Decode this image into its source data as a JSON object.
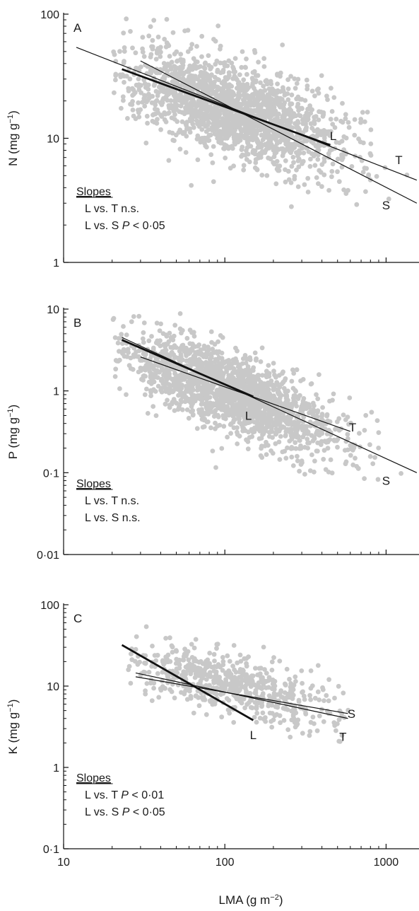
{
  "x_axis": {
    "label_main": "LMA (g m",
    "label_sup": "−2",
    "label_close": ")",
    "ticks": [
      {
        "value": 10,
        "label": "10"
      },
      {
        "value": 100,
        "label": "100"
      },
      {
        "value": 1000,
        "label": "1000"
      }
    ]
  },
  "chart_data": [
    {
      "type": "scatter",
      "panel": "A",
      "y_scale": "log",
      "x_scale": "log",
      "xlim": [
        10,
        1600
      ],
      "ylim": [
        1,
        100
      ],
      "ylabel_main": "N (mg g",
      "ylabel_sup": "−1",
      "ylabel_close": ")",
      "y_ticks": [
        {
          "value": 1,
          "label": "1"
        },
        {
          "value": 10,
          "label": "10"
        },
        {
          "value": 100,
          "label": "100"
        }
      ],
      "cloud": {
        "x_range": [
          20,
          1500
        ],
        "center": [
          110,
          17
        ],
        "slope": -0.42
      },
      "lines": [
        {
          "name": "L",
          "x": [
            23,
            450
          ],
          "y": [
            36,
            8.8
          ],
          "weight": "bold"
        },
        {
          "name": "T",
          "x": [
            12,
            1550
          ],
          "y": [
            54,
            4.6
          ],
          "weight": "thin"
        },
        {
          "name": "S",
          "x": [
            30,
            1550
          ],
          "y": [
            42,
            3.0
          ],
          "weight": "thin"
        }
      ],
      "line_labels": [
        {
          "text": "L",
          "x": 470,
          "y": 10.5
        },
        {
          "text": "T",
          "x": 1200,
          "y": 6.7
        },
        {
          "text": "S",
          "x": 1000,
          "y": 2.9
        }
      ],
      "stats": [
        {
          "kind": "title",
          "text": "Slopes"
        },
        {
          "kind": "row",
          "text": "L vs. T n.s."
        },
        {
          "kind": "row",
          "prefix": "L vs. S ",
          "p": "P",
          "suffix": " < 0·05"
        }
      ]
    },
    {
      "type": "scatter",
      "panel": "B",
      "y_scale": "log",
      "x_scale": "log",
      "xlim": [
        10,
        1600
      ],
      "ylim": [
        0.01,
        10
      ],
      "ylabel_main": "P (mg g",
      "ylabel_sup": "−1",
      "ylabel_close": ")",
      "y_ticks": [
        {
          "value": 0.01,
          "label": "0·01"
        },
        {
          "value": 0.1,
          "label": "0·1"
        },
        {
          "value": 1,
          "label": "1"
        },
        {
          "value": 10,
          "label": "10"
        }
      ],
      "cloud": {
        "x_range": [
          20,
          1500
        ],
        "center": [
          110,
          0.95
        ],
        "slope": -0.75
      },
      "lines": [
        {
          "name": "L",
          "x": [
            23,
            150
          ],
          "y": [
            4.2,
            0.85
          ],
          "weight": "bold"
        },
        {
          "name": "T",
          "x": [
            30,
            600
          ],
          "y": [
            2.6,
            0.32
          ],
          "weight": "thin"
        },
        {
          "name": "S",
          "x": [
            23,
            1550
          ],
          "y": [
            4.5,
            0.1
          ],
          "weight": "thin"
        }
      ],
      "line_labels": [
        {
          "text": "L",
          "x": 140,
          "y": 0.5
        },
        {
          "text": "T",
          "x": 620,
          "y": 0.36
        },
        {
          "text": "S",
          "x": 1000,
          "y": 0.08
        }
      ],
      "stats": [
        {
          "kind": "title",
          "text": "Slopes"
        },
        {
          "kind": "row",
          "text": "L vs. T n.s."
        },
        {
          "kind": "row",
          "text": "L vs. S n.s."
        }
      ]
    },
    {
      "type": "scatter",
      "panel": "C",
      "y_scale": "log",
      "x_scale": "log",
      "xlim": [
        10,
        1600
      ],
      "ylim": [
        0.1,
        100
      ],
      "ylabel_main": "K (mg g",
      "ylabel_sup": "−1",
      "ylabel_close": ")",
      "y_ticks": [
        {
          "value": 0.1,
          "label": "0·1"
        },
        {
          "value": 1,
          "label": "1"
        },
        {
          "value": 10,
          "label": "10"
        },
        {
          "value": 100,
          "label": "100"
        }
      ],
      "cloud": {
        "x_range": [
          25,
          600
        ],
        "center": [
          115,
          10
        ],
        "slope": -0.45
      },
      "lines": [
        {
          "name": "L",
          "x": [
            23,
            150
          ],
          "y": [
            32,
            3.8
          ],
          "weight": "bold"
        },
        {
          "name": "T",
          "x": [
            28,
            580
          ],
          "y": [
            14.5,
            4.0
          ],
          "weight": "thin"
        },
        {
          "name": "S",
          "x": [
            28,
            580
          ],
          "y": [
            13.0,
            4.6
          ],
          "weight": "thin"
        }
      ],
      "line_labels": [
        {
          "text": "S",
          "x": 610,
          "y": 4.6
        },
        {
          "text": "T",
          "x": 540,
          "y": 2.4
        },
        {
          "text": "L",
          "x": 150,
          "y": 2.5
        }
      ],
      "stats": [
        {
          "kind": "title",
          "text": "Slopes"
        },
        {
          "kind": "row",
          "prefix": "L vs. T ",
          "p": "P",
          "suffix": " < 0·01"
        },
        {
          "kind": "row",
          "prefix": "L vs. S ",
          "p": "P",
          "suffix": " < 0·05"
        }
      ]
    }
  ]
}
